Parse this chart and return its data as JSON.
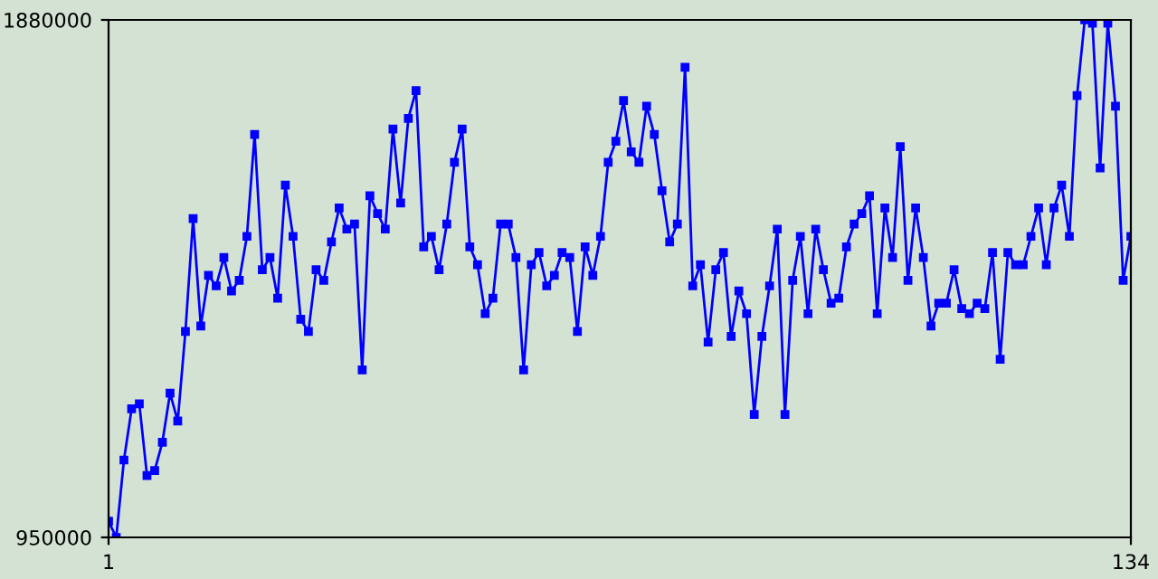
{
  "chart_data": {
    "type": "line",
    "x": [
      1,
      2,
      3,
      4,
      5,
      6,
      7,
      8,
      9,
      10,
      11,
      12,
      13,
      14,
      15,
      16,
      17,
      18,
      19,
      20,
      21,
      22,
      23,
      24,
      25,
      26,
      27,
      28,
      29,
      30,
      31,
      32,
      33,
      34,
      35,
      36,
      37,
      38,
      39,
      40,
      41,
      42,
      43,
      44,
      45,
      46,
      47,
      48,
      49,
      50,
      51,
      52,
      53,
      54,
      55,
      56,
      57,
      58,
      59,
      60,
      61,
      62,
      63,
      64,
      65,
      66,
      67,
      68,
      69,
      70,
      71,
      72,
      73,
      74,
      75,
      76,
      77,
      78,
      79,
      80,
      81,
      82,
      83,
      84,
      85,
      86,
      87,
      88,
      89,
      90,
      91,
      92,
      93,
      94,
      95,
      96,
      97,
      98,
      99,
      100,
      101,
      102,
      103,
      104,
      105,
      106,
      107,
      108,
      109,
      110,
      111,
      112,
      113,
      114,
      115,
      116,
      117,
      118,
      119,
      120,
      121,
      122,
      123,
      124,
      125,
      126,
      127,
      128,
      129,
      130,
      131,
      132,
      133,
      134
    ],
    "series": [
      {
        "color": "#0000ff",
        "values": [
          979000,
          950000,
          1089000,
          1181000,
          1190000,
          1061000,
          1070000,
          1121000,
          1209000,
          1159000,
          1320000,
          1523000,
          1330000,
          1421000,
          1402000,
          1453000,
          1393000,
          1412000,
          1491000,
          1674000,
          1431000,
          1453000,
          1380000,
          1583000,
          1491000,
          1342000,
          1320000,
          1431000,
          1412000,
          1481000,
          1542000,
          1504000,
          1513000,
          1251000,
          1564000,
          1532000,
          1504000,
          1684000,
          1551000,
          1703000,
          1753000,
          1472000,
          1491000,
          1431000,
          1513000,
          1624000,
          1684000,
          1472000,
          1440000,
          1352000,
          1380000,
          1513000,
          1513000,
          1453000,
          1251000,
          1440000,
          1462000,
          1402000,
          1421000,
          1462000,
          1453000,
          1320000,
          1472000,
          1421000,
          1491000,
          1624000,
          1662000,
          1735000,
          1643000,
          1624000,
          1725000,
          1674000,
          1573000,
          1481000,
          1513000,
          1795000,
          1402000,
          1440000,
          1301000,
          1431000,
          1462000,
          1311000,
          1393000,
          1352000,
          1171000,
          1311000,
          1402000,
          1504000,
          1171000,
          1412000,
          1491000,
          1352000,
          1504000,
          1431000,
          1371000,
          1380000,
          1472000,
          1513000,
          1532000,
          1564000,
          1352000,
          1542000,
          1453000,
          1652000,
          1412000,
          1542000,
          1453000,
          1330000,
          1371000,
          1371000,
          1431000,
          1361000,
          1352000,
          1371000,
          1361000,
          1462000,
          1270000,
          1462000,
          1440000,
          1440000,
          1491000,
          1542000,
          1440000,
          1542000,
          1583000,
          1491000,
          1744000,
          1880000,
          1874000,
          1614000,
          1874000,
          1725000,
          1412000,
          1491000
        ]
      }
    ],
    "xlim": [
      1,
      134
    ],
    "xticks": [
      1,
      134
    ],
    "ylim": [
      950000,
      1880000
    ],
    "yticks": [
      950000,
      1880000
    ],
    "grid": false,
    "marker": "square",
    "line_style": "solid"
  }
}
